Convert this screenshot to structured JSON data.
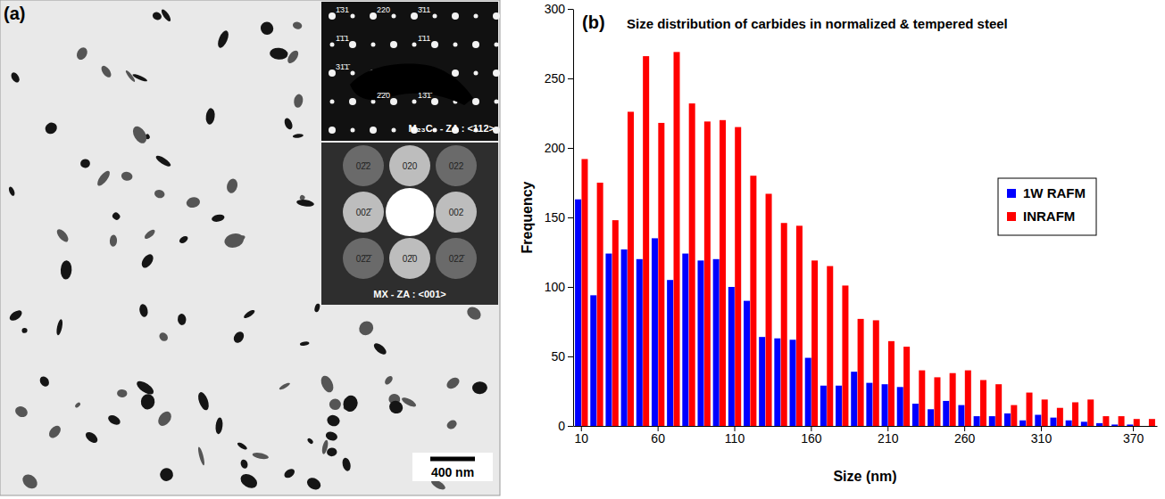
{
  "chart_data": {
    "type": "bar",
    "title": "Size distribution of carbides in normalized & tempered steel",
    "panel_label": "(b)",
    "x_label": "Size (nm)",
    "y_label": "Frequency",
    "categories": [
      "10",
      null,
      null,
      null,
      null,
      "60",
      null,
      null,
      null,
      null,
      "110",
      null,
      null,
      null,
      null,
      "160",
      null,
      null,
      null,
      null,
      "210",
      null,
      null,
      null,
      null,
      "260",
      null,
      null,
      null,
      null,
      "310",
      null,
      null,
      null,
      null,
      null,
      "370",
      null
    ],
    "series": [
      {
        "name": "1W RAFM",
        "color": "#0000ff",
        "values": [
          163,
          94,
          124,
          127,
          120,
          135,
          105,
          124,
          119,
          120,
          100,
          90,
          64,
          63,
          62,
          49,
          29,
          29,
          39,
          31,
          30,
          28,
          16,
          12,
          18,
          15,
          7,
          7,
          9,
          4,
          8,
          6,
          4,
          3,
          2,
          1,
          1,
          0
        ]
      },
      {
        "name": "INRAFM",
        "color": "#ff0000",
        "values": [
          192,
          175,
          148,
          226,
          266,
          218,
          269,
          232,
          219,
          220,
          215,
          180,
          167,
          146,
          144,
          119,
          115,
          101,
          77,
          76,
          61,
          57,
          40,
          35,
          38,
          40,
          33,
          30,
          15,
          24,
          19,
          13,
          17,
          19,
          7,
          7,
          5,
          5
        ]
      }
    ],
    "ylim": [
      0,
      300
    ],
    "yticks": [
      0,
      50,
      100,
      150,
      200,
      250,
      300
    ],
    "grid": false,
    "legend": "right"
  },
  "micrograph": {
    "label": "(a)",
    "scale_bar": "400 nm",
    "insets": [
      {
        "title": "M₂₃C₆ - ZA : <112>",
        "spots": [
          "1̄31",
          "220",
          "3̄11",
          "1̄1̄1",
          "1̄11",
          "31̄1̄",
          "2̄2̄0",
          "13̄1̄"
        ]
      },
      {
        "title": "MX - ZA : <001>",
        "spots": [
          "02̄2",
          "020",
          "022",
          "002̄",
          "002",
          "02̄2̄",
          "02̄0",
          "022̄"
        ]
      }
    ]
  }
}
